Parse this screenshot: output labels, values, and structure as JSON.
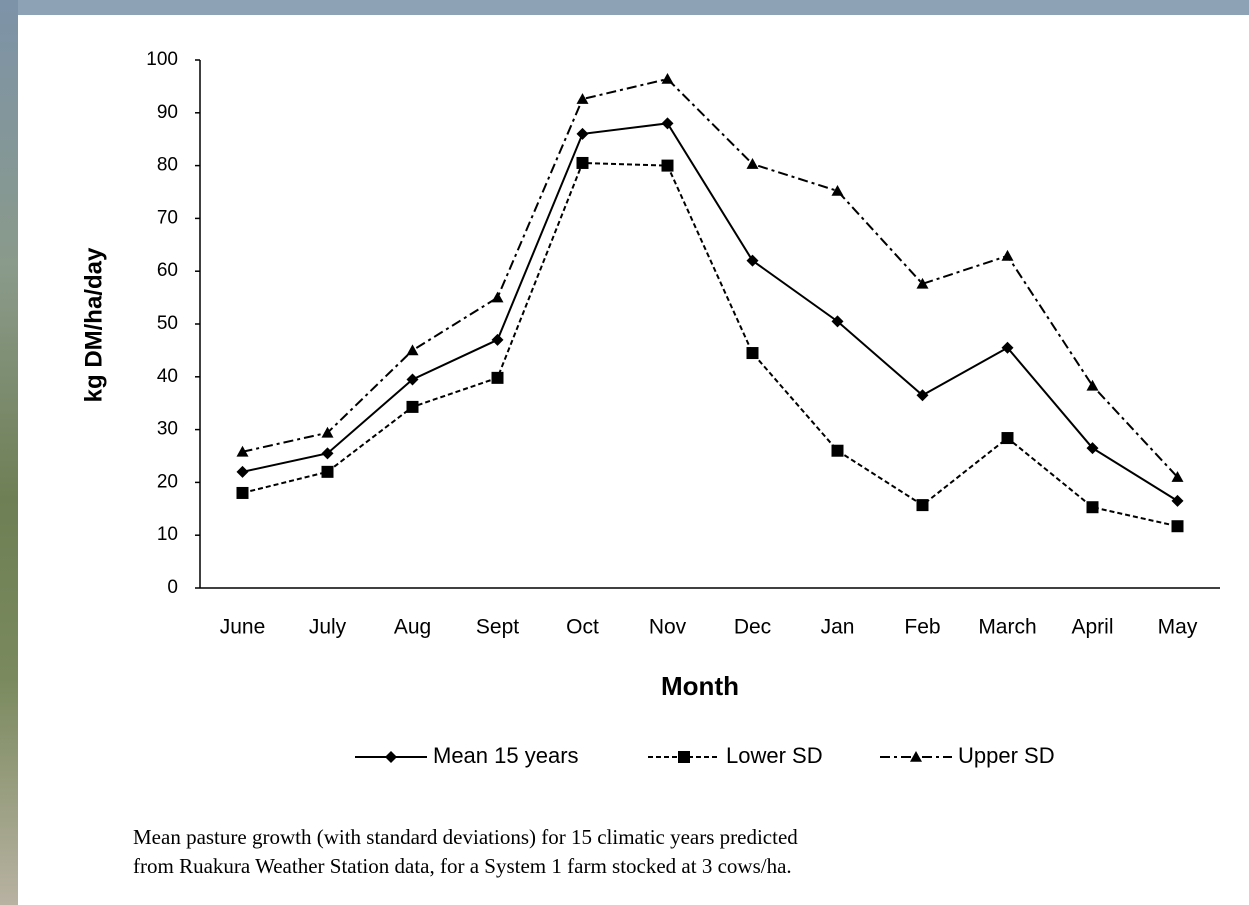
{
  "chart_data": {
    "type": "line",
    "x_label": "Month",
    "y_label": "kg DM/ha/day",
    "categories": [
      "June",
      "July",
      "Aug",
      "Sept",
      "Oct",
      "Nov",
      "Dec",
      "Jan",
      "Feb",
      "March",
      "April",
      "May"
    ],
    "series": [
      {
        "name": "Mean 15 years",
        "color": "#000000",
        "marker": "diamond",
        "dash": "solid",
        "values": [
          22,
          25.5,
          39.5,
          47,
          86,
          88,
          62,
          50.5,
          36.5,
          45.5,
          26.5,
          16.5
        ]
      },
      {
        "name": "Lower SD",
        "color": "#000000",
        "marker": "square",
        "dash": "dashed",
        "values": [
          18,
          22,
          34.3,
          39.8,
          80.5,
          80,
          44.5,
          26,
          15.7,
          28.4,
          15.3,
          11.7
        ]
      },
      {
        "name": "Upper SD",
        "color": "#000000",
        "marker": "triangle",
        "dash": "dashdot",
        "values": [
          25.8,
          29.4,
          45,
          55,
          92.6,
          96.4,
          80.3,
          75.2,
          57.6,
          62.9,
          38.3,
          21
        ]
      }
    ],
    "ylim": [
      0,
      100
    ],
    "yticks": [
      0,
      10,
      20,
      30,
      40,
      50,
      60,
      70,
      80,
      90,
      100
    ],
    "grid": false,
    "legend": "bottom",
    "caption": [
      "Mean pasture growth (with standard deviations) for 15 climatic years predicted",
      "from Ruakura Weather Station data, for a System 1 farm stocked at 3 cows/ha."
    ]
  }
}
